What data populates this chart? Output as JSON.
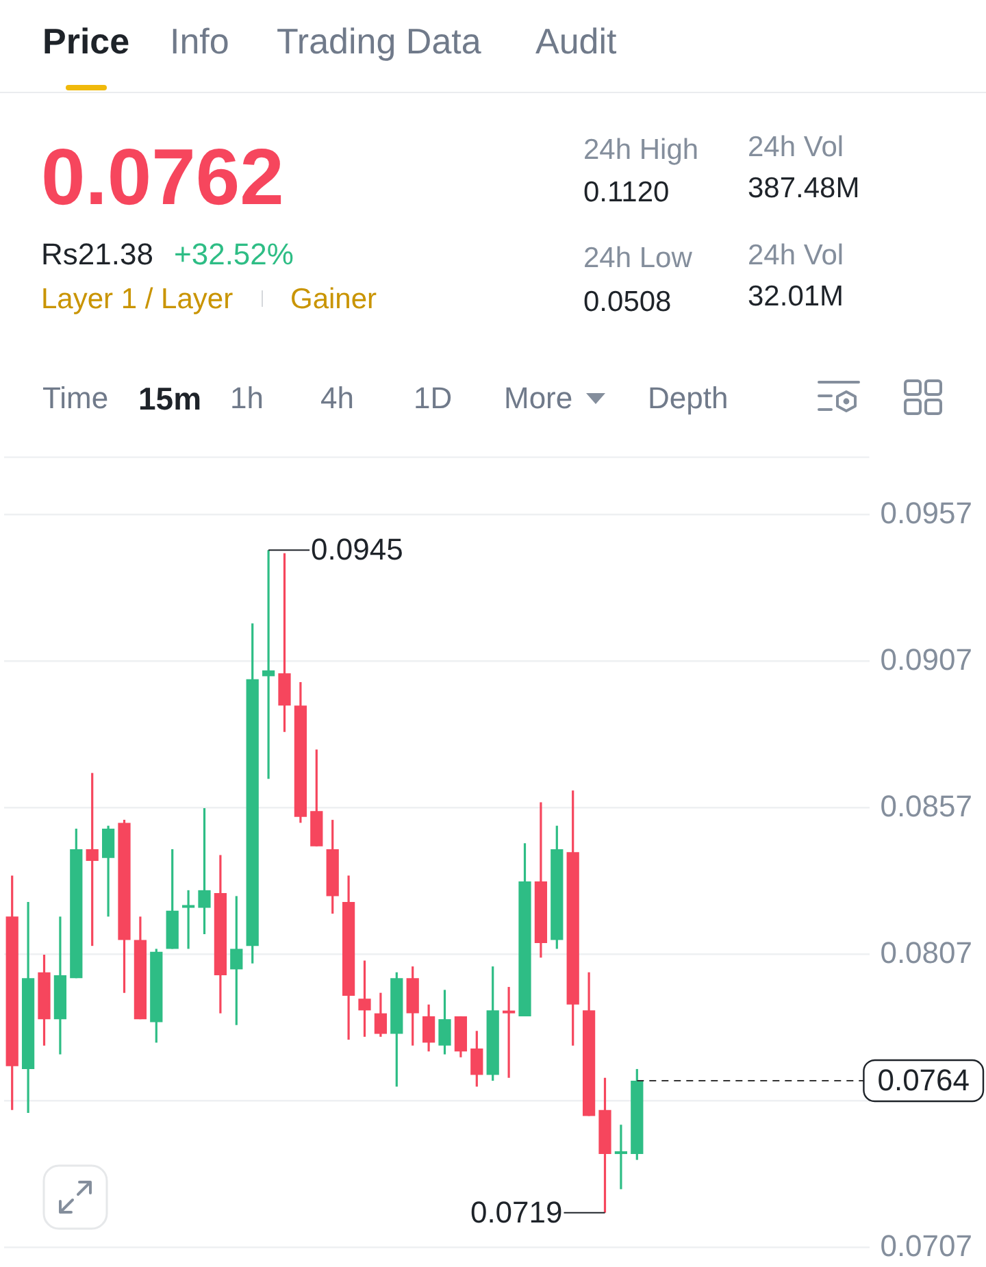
{
  "chart_data": [
    {
      "type": "other",
      "annotations": [
        "Price",
        "Info",
        "Trading Data",
        "Audit",
        "0.0762",
        "Rs21.38",
        "+32.52%",
        "Layer 1 / Layer",
        "Gainer",
        "24h High",
        "0.1120",
        "24h Low",
        "0.0508",
        "24h Vol",
        "387.48M",
        "24h Vol",
        "32.01M",
        "Time",
        "15m",
        "1h",
        "4h",
        "1D",
        "More",
        "Depth"
      ]
    },
    {
      "type": "candlestick",
      "categories": [
        null,
        null,
        null,
        null,
        null,
        null,
        null,
        null,
        null,
        null,
        null,
        null,
        null,
        null,
        null,
        null,
        null,
        null,
        null,
        null,
        null,
        null,
        null,
        null,
        null,
        null,
        null,
        null,
        null,
        null,
        null,
        null,
        null,
        null,
        null,
        null,
        null,
        null,
        null,
        null,
        null,
        null,
        null,
        null,
        null,
        null,
        null,
        null,
        null,
        null,
        null,
        null,
        null,
        null
      ],
      "ohlc": [
        [
          0.082,
          0.0834,
          0.0754,
          0.0769
        ],
        [
          0.0768,
          0.0825,
          0.0753,
          0.0799
        ],
        [
          0.0801,
          0.0807,
          0.0776,
          0.0785
        ],
        [
          0.0785,
          0.082,
          0.0773,
          0.08
        ],
        [
          0.0799,
          0.085,
          0.0799,
          0.0843
        ],
        [
          0.0843,
          0.0869,
          0.081,
          0.0839
        ],
        [
          0.084,
          0.0851,
          0.082,
          0.085
        ],
        [
          0.0852,
          0.0853,
          0.0794,
          0.0812
        ],
        [
          0.0812,
          0.082,
          0.0785,
          0.0785
        ],
        [
          0.0784,
          0.0809,
          0.0777,
          0.0808
        ],
        [
          0.0809,
          0.0843,
          0.0809,
          0.0822
        ],
        [
          0.0823,
          0.0829,
          0.0809,
          0.0823
        ],
        [
          0.0823,
          0.0857,
          0.0814,
          0.0829
        ],
        [
          0.0828,
          0.0841,
          0.0787,
          0.08
        ],
        [
          0.0802,
          0.0827,
          0.0783,
          0.0809
        ],
        [
          0.081,
          0.092,
          0.0804,
          0.0901
        ],
        [
          0.0902,
          0.0945,
          0.0867,
          0.0904
        ],
        [
          0.0903,
          0.0944,
          0.0883,
          0.0892
        ],
        [
          0.0892,
          0.09,
          0.0852,
          0.0854
        ],
        [
          0.0856,
          0.0877,
          0.0844,
          0.0844
        ],
        [
          0.0843,
          0.0853,
          0.0821,
          0.0827
        ],
        [
          0.0825,
          0.0834,
          0.0778,
          0.0793
        ],
        [
          0.0792,
          0.0805,
          0.0779,
          0.0788
        ],
        [
          0.0787,
          0.0794,
          0.0779,
          0.078
        ],
        [
          0.078,
          0.0801,
          0.0762,
          0.0799
        ],
        [
          0.0799,
          0.0803,
          0.0776,
          0.0787
        ],
        [
          0.0786,
          0.079,
          0.0774,
          0.0777
        ],
        [
          0.0776,
          0.0795,
          0.0773,
          0.0785
        ],
        [
          0.0786,
          0.0786,
          0.0772,
          0.0774
        ],
        [
          0.0775,
          0.0781,
          0.0762,
          0.0766
        ],
        [
          0.0766,
          0.0803,
          0.0764,
          0.0788
        ],
        [
          0.0787,
          0.0796,
          0.0765,
          0.0787
        ],
        [
          0.0786,
          0.0845,
          0.0786,
          0.0832
        ],
        [
          0.0832,
          0.0859,
          0.0806,
          0.0811
        ],
        [
          0.0812,
          0.0851,
          0.0809,
          0.0843
        ],
        [
          0.0842,
          0.0863,
          0.0776,
          0.079
        ],
        [
          0.0788,
          0.0801,
          0.0752,
          0.0752
        ],
        [
          0.0754,
          0.0765,
          0.0719,
          0.0739
        ],
        [
          0.0739,
          0.0749,
          0.0727,
          0.0739
        ],
        [
          0.0739,
          0.0768,
          0.0737,
          0.0764
        ],
        null,
        null,
        null,
        null,
        null,
        null,
        null,
        null,
        null,
        null,
        null,
        null,
        null,
        null
      ],
      "colors": [
        "#f6465d",
        "#2ebd85",
        "#f6465d",
        "#2ebd85",
        "#2ebd85",
        "#f6465d",
        "#2ebd85",
        "#f6465d",
        "#f6465d",
        "#2ebd85",
        "#2ebd85",
        "#2ebd85",
        "#2ebd85",
        "#f6465d",
        "#2ebd85",
        "#2ebd85",
        "#2ebd85",
        "#f6465d",
        "#f6465d",
        "#f6465d",
        "#f6465d",
        "#f6465d",
        "#f6465d",
        "#f6465d",
        "#2ebd85",
        "#f6465d",
        "#f6465d",
        "#2ebd85",
        "#f6465d",
        "#f6465d",
        "#2ebd85",
        "#f6465d",
        "#2ebd85",
        "#f6465d",
        "#2ebd85",
        "#f6465d",
        "#f6465d",
        "#f6465d",
        "#2ebd85",
        "#2ebd85",
        null,
        null,
        null,
        null,
        null,
        null,
        null,
        null,
        null,
        null,
        null,
        null,
        null,
        null
      ],
      "ylim": [
        0.0707,
        0.0977
      ],
      "yticks": [
        0.0707,
        {
          "value": 0.0757,
          "label": null
        },
        0.0807,
        0.0857,
        0.0907,
        0.0957
      ],
      "grid": "y",
      "ref_lines": [
        {
          "axis": "y",
          "value": 0.0764,
          "label": "0.0764",
          "line_style": "dashed"
        }
      ],
      "annotations": [
        "0.0945",
        "0.0719"
      ]
    }
  ]
}
